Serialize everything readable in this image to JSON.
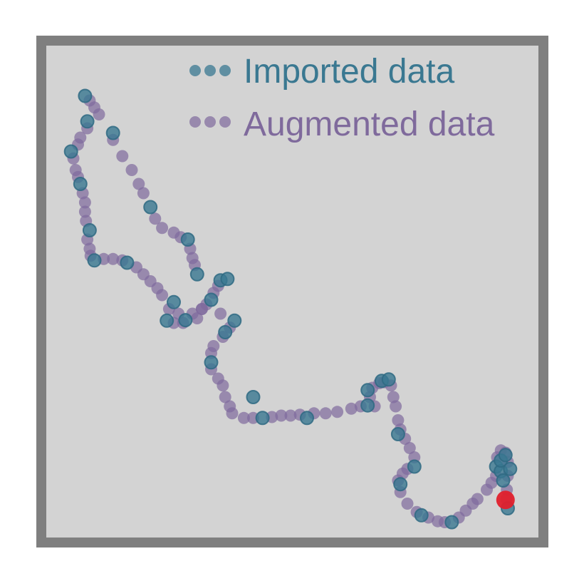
{
  "chart_data": {
    "type": "scatter",
    "title": "",
    "xlabel": "",
    "ylabel": "",
    "grid": false,
    "axis_ticks": false,
    "legend_position": "top-right",
    "colors": {
      "background": "#d3d3d3",
      "frame": "#7f7f7f",
      "imported": "#3a7891",
      "augmented": "#7f6a9c",
      "highlight": "#e0202c"
    },
    "series": [
      {
        "name": "Imported data",
        "key": "imported",
        "points": [
          [
            0.06,
            0.93
          ],
          [
            0.065,
            0.875
          ],
          [
            0.12,
            0.85
          ],
          [
            0.03,
            0.81
          ],
          [
            0.05,
            0.74
          ],
          [
            0.07,
            0.64
          ],
          [
            0.08,
            0.575
          ],
          [
            0.15,
            0.57
          ],
          [
            0.2,
            0.69
          ],
          [
            0.28,
            0.62
          ],
          [
            0.3,
            0.545
          ],
          [
            0.35,
            0.532
          ],
          [
            0.365,
            0.535
          ],
          [
            0.33,
            0.49
          ],
          [
            0.25,
            0.485
          ],
          [
            0.235,
            0.445
          ],
          [
            0.275,
            0.446
          ],
          [
            0.38,
            0.445
          ],
          [
            0.36,
            0.42
          ],
          [
            0.33,
            0.355
          ],
          [
            0.42,
            0.28
          ],
          [
            0.44,
            0.235
          ],
          [
            0.535,
            0.235
          ],
          [
            0.665,
            0.262
          ],
          [
            0.665,
            0.295
          ],
          [
            0.695,
            0.315
          ],
          [
            0.71,
            0.318
          ],
          [
            0.73,
            0.2
          ],
          [
            0.765,
            0.13
          ],
          [
            0.735,
            0.092
          ],
          [
            0.78,
            0.025
          ],
          [
            0.845,
            0.01
          ],
          [
            0.94,
            0.13
          ],
          [
            0.95,
            0.12
          ],
          [
            0.95,
            0.143
          ],
          [
            0.97,
            0.125
          ],
          [
            0.96,
            0.155
          ],
          [
            0.955,
            0.1
          ],
          [
            0.965,
            0.04
          ]
        ]
      },
      {
        "name": "Augmented data",
        "key": "augmented",
        "points": [
          [
            0.07,
            0.92
          ],
          [
            0.08,
            0.905
          ],
          [
            0.09,
            0.89
          ],
          [
            0.065,
            0.86
          ],
          [
            0.05,
            0.84
          ],
          [
            0.045,
            0.825
          ],
          [
            0.035,
            0.795
          ],
          [
            0.04,
            0.77
          ],
          [
            0.045,
            0.755
          ],
          [
            0.055,
            0.72
          ],
          [
            0.06,
            0.7
          ],
          [
            0.06,
            0.68
          ],
          [
            0.062,
            0.66
          ],
          [
            0.065,
            0.62
          ],
          [
            0.07,
            0.6
          ],
          [
            0.072,
            0.585
          ],
          [
            0.1,
            0.578
          ],
          [
            0.12,
            0.578
          ],
          [
            0.14,
            0.575
          ],
          [
            0.17,
            0.56
          ],
          [
            0.185,
            0.545
          ],
          [
            0.2,
            0.53
          ],
          [
            0.215,
            0.515
          ],
          [
            0.225,
            0.5
          ],
          [
            0.24,
            0.47
          ],
          [
            0.26,
            0.46
          ],
          [
            0.29,
            0.46
          ],
          [
            0.31,
            0.47
          ],
          [
            0.32,
            0.48
          ],
          [
            0.335,
            0.505
          ],
          [
            0.345,
            0.52
          ],
          [
            0.25,
            0.44
          ],
          [
            0.27,
            0.44
          ],
          [
            0.3,
            0.45
          ],
          [
            0.31,
            0.47
          ],
          [
            0.35,
            0.46
          ],
          [
            0.37,
            0.43
          ],
          [
            0.355,
            0.41
          ],
          [
            0.335,
            0.39
          ],
          [
            0.33,
            0.375
          ],
          [
            0.33,
            0.34
          ],
          [
            0.345,
            0.32
          ],
          [
            0.355,
            0.305
          ],
          [
            0.36,
            0.28
          ],
          [
            0.37,
            0.26
          ],
          [
            0.375,
            0.245
          ],
          [
            0.4,
            0.235
          ],
          [
            0.42,
            0.235
          ],
          [
            0.46,
            0.237
          ],
          [
            0.48,
            0.24
          ],
          [
            0.5,
            0.24
          ],
          [
            0.52,
            0.242
          ],
          [
            0.55,
            0.245
          ],
          [
            0.575,
            0.245
          ],
          [
            0.6,
            0.248
          ],
          [
            0.63,
            0.255
          ],
          [
            0.65,
            0.26
          ],
          [
            0.68,
            0.26
          ],
          [
            0.67,
            0.28
          ],
          [
            0.675,
            0.3
          ],
          [
            0.69,
            0.31
          ],
          [
            0.7,
            0.312
          ],
          [
            0.715,
            0.305
          ],
          [
            0.72,
            0.28
          ],
          [
            0.725,
            0.26
          ],
          [
            0.73,
            0.23
          ],
          [
            0.735,
            0.21
          ],
          [
            0.745,
            0.19
          ],
          [
            0.755,
            0.17
          ],
          [
            0.765,
            0.15
          ],
          [
            0.75,
            0.125
          ],
          [
            0.74,
            0.115
          ],
          [
            0.73,
            0.1
          ],
          [
            0.735,
            0.075
          ],
          [
            0.75,
            0.05
          ],
          [
            0.77,
            0.032
          ],
          [
            0.795,
            0.02
          ],
          [
            0.815,
            0.012
          ],
          [
            0.83,
            0.01
          ],
          [
            0.86,
            0.02
          ],
          [
            0.875,
            0.035
          ],
          [
            0.89,
            0.05
          ],
          [
            0.9,
            0.06
          ],
          [
            0.92,
            0.08
          ],
          [
            0.93,
            0.095
          ],
          [
            0.94,
            0.11
          ],
          [
            0.942,
            0.15
          ],
          [
            0.95,
            0.165
          ],
          [
            0.96,
            0.16
          ],
          [
            0.965,
            0.14
          ],
          [
            0.965,
            0.11
          ],
          [
            0.963,
            0.08
          ],
          [
            0.962,
            0.06
          ],
          [
            0.12,
            0.835
          ],
          [
            0.14,
            0.8
          ],
          [
            0.16,
            0.77
          ],
          [
            0.175,
            0.74
          ],
          [
            0.185,
            0.72
          ],
          [
            0.21,
            0.665
          ],
          [
            0.225,
            0.645
          ],
          [
            0.25,
            0.635
          ],
          [
            0.265,
            0.625
          ],
          [
            0.285,
            0.6
          ],
          [
            0.29,
            0.58
          ],
          [
            0.295,
            0.565
          ]
        ]
      },
      {
        "name": "",
        "key": "highlight",
        "points": [
          [
            0.96,
            0.058
          ]
        ]
      }
    ],
    "xlim": [
      0,
      1
    ],
    "ylim": [
      0,
      1
    ]
  }
}
